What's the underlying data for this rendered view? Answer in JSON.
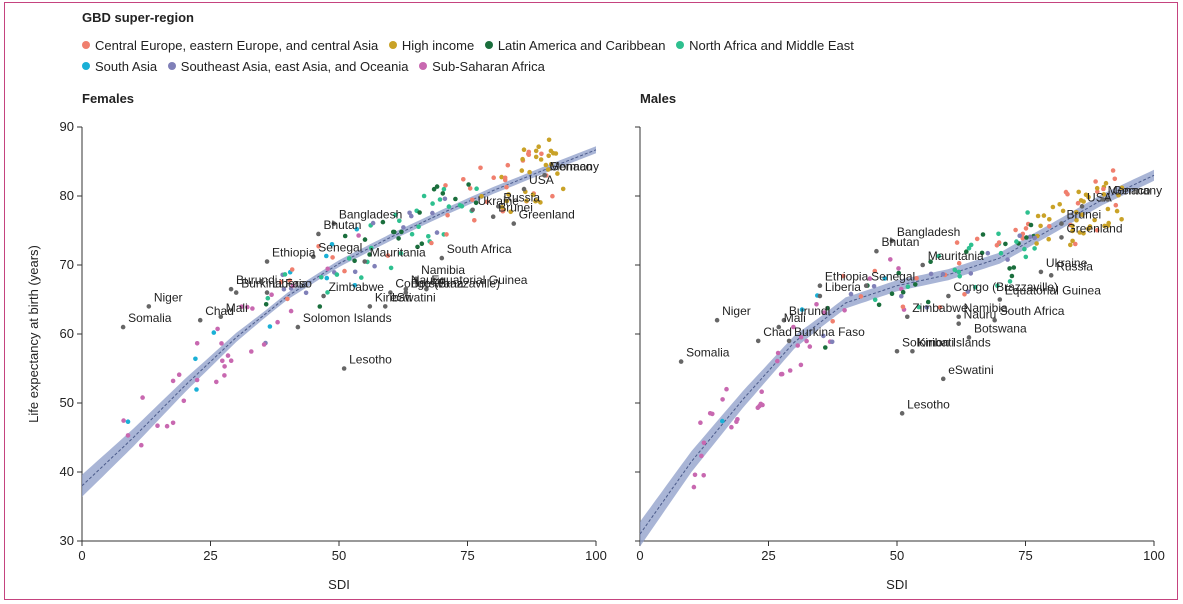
{
  "legend": {
    "title": "GBD super-region",
    "items": [
      {
        "label": "Central Europe, eastern Europe, and central Asia",
        "color": "#f07f6e"
      },
      {
        "label": "High income",
        "color": "#c9a227"
      },
      {
        "label": "Latin America and Caribbean",
        "color": "#1a6e3c"
      },
      {
        "label": "North Africa and Middle East",
        "color": "#2ec08f"
      },
      {
        "label": "South Asia",
        "color": "#1ab0d6"
      },
      {
        "label": "Southeast Asia, east Asia, and Oceania",
        "color": "#8080b8"
      },
      {
        "label": "Sub-Saharan Africa",
        "color": "#c868b0"
      }
    ]
  },
  "chart_data": [
    {
      "type": "scatter",
      "title": "Females",
      "xlabel": "SDI",
      "ylabel": "Life expectancy at birth (years)",
      "xlim": [
        0,
        100
      ],
      "ylim": [
        30,
        90
      ],
      "xticks": [
        "0",
        "25",
        "50",
        "75",
        "100"
      ],
      "yticks": [
        "30",
        "40",
        "50",
        "60",
        "70",
        "80",
        "90"
      ],
      "curve": {
        "x": [
          0,
          10,
          20,
          30,
          40,
          50,
          60,
          70,
          80,
          90,
          100
        ],
        "y": [
          38,
          45,
          52.5,
          59.5,
          65.5,
          70.2,
          74,
          77.5,
          80.8,
          83.8,
          86.7
        ]
      },
      "labels": [
        {
          "text": "Ukraine",
          "x": 76,
          "y": 78
        },
        {
          "text": "Germany",
          "x": 90,
          "y": 83
        },
        {
          "text": "USA",
          "x": 86,
          "y": 81
        },
        {
          "text": "Russia",
          "x": 81,
          "y": 78.5
        },
        {
          "text": "Monaco",
          "x": 90,
          "y": 83
        },
        {
          "text": "Bangladesh",
          "x": 49,
          "y": 76
        },
        {
          "text": "Brunei",
          "x": 80,
          "y": 77
        },
        {
          "text": "Greenland",
          "x": 84,
          "y": 76
        },
        {
          "text": "Bhutan",
          "x": 46,
          "y": 74.5
        },
        {
          "text": "Senegal",
          "x": 45,
          "y": 71.2
        },
        {
          "text": "Ethiopia",
          "x": 36,
          "y": 70.5
        },
        {
          "text": "Mauritania",
          "x": 55,
          "y": 70.5
        },
        {
          "text": "South Africa",
          "x": 70,
          "y": 71
        },
        {
          "text": "Burundi",
          "x": 29,
          "y": 66.5
        },
        {
          "text": "Burkina Faso",
          "x": 30,
          "y": 66
        },
        {
          "text": "Namibia",
          "x": 65,
          "y": 68
        },
        {
          "text": "Equatorial Guinea",
          "x": 67,
          "y": 66.5
        },
        {
          "text": "Niger",
          "x": 13,
          "y": 64
        },
        {
          "text": "Liberia",
          "x": 36,
          "y": 66
        },
        {
          "text": "Congo (Brazzaville)",
          "x": 60,
          "y": 66
        },
        {
          "text": "Nauru",
          "x": 63,
          "y": 66.5
        },
        {
          "text": "Chad",
          "x": 23,
          "y": 62
        },
        {
          "text": "Mali",
          "x": 27,
          "y": 62.5
        },
        {
          "text": "Zimbabwe",
          "x": 47,
          "y": 65.5
        },
        {
          "text": "Kiribati",
          "x": 56,
          "y": 64
        },
        {
          "text": "eSwatini",
          "x": 59,
          "y": 64
        },
        {
          "text": "Botswana",
          "x": 63,
          "y": 66
        },
        {
          "text": "Somalia",
          "x": 8,
          "y": 61
        },
        {
          "text": "Solomon Islands",
          "x": 42,
          "y": 61
        },
        {
          "text": "Lesotho",
          "x": 51,
          "y": 55
        }
      ]
    },
    {
      "type": "scatter",
      "title": "Males",
      "xlabel": "SDI",
      "ylabel": "",
      "xlim": [
        0,
        100
      ],
      "ylim": [
        30,
        90
      ],
      "xticks": [
        "0",
        "25",
        "50",
        "75",
        "100"
      ],
      "yticks": [],
      "curve": {
        "x": [
          0,
          10,
          20,
          30,
          40,
          50,
          60,
          70,
          80,
          90,
          100
        ],
        "y": [
          31,
          41.5,
          50.5,
          58.8,
          64.5,
          67,
          68.6,
          71,
          75.2,
          79.5,
          83
        ]
      },
      "labels": [
        {
          "text": "Bangladesh",
          "x": 49,
          "y": 73.5
        },
        {
          "text": "Germany",
          "x": 91,
          "y": 79.5
        },
        {
          "text": "USA",
          "x": 86,
          "y": 78.5
        },
        {
          "text": "Monaco",
          "x": 90,
          "y": 79.5
        },
        {
          "text": "Bhutan",
          "x": 46,
          "y": 72
        },
        {
          "text": "Brunei",
          "x": 82,
          "y": 76
        },
        {
          "text": "Mauritania",
          "x": 55,
          "y": 70
        },
        {
          "text": "Greenland",
          "x": 82,
          "y": 74
        },
        {
          "text": "Ethiopia",
          "x": 35,
          "y": 67
        },
        {
          "text": "Senegal",
          "x": 44,
          "y": 67
        },
        {
          "text": "Ukraine",
          "x": 78,
          "y": 69
        },
        {
          "text": "Russia",
          "x": 80,
          "y": 68.5
        },
        {
          "text": "Liberia",
          "x": 35,
          "y": 65.5
        },
        {
          "text": "Congo (Brazzaville)",
          "x": 60,
          "y": 65.5
        },
        {
          "text": "Equatorial Guinea",
          "x": 70,
          "y": 65
        },
        {
          "text": "Niger",
          "x": 15,
          "y": 62
        },
        {
          "text": "Burundi",
          "x": 28,
          "y": 62
        },
        {
          "text": "Namibia",
          "x": 62,
          "y": 62.5
        },
        {
          "text": "Nauru",
          "x": 62,
          "y": 61.5
        },
        {
          "text": "South Africa",
          "x": 69,
          "y": 62
        },
        {
          "text": "Mali",
          "x": 27,
          "y": 61
        },
        {
          "text": "Zimbabwe",
          "x": 52,
          "y": 62.5
        },
        {
          "text": "Chad",
          "x": 23,
          "y": 59
        },
        {
          "text": "Botswana",
          "x": 64,
          "y": 59.5
        },
        {
          "text": "Burkina Faso",
          "x": 29,
          "y": 59
        },
        {
          "text": "Kiribati",
          "x": 53,
          "y": 57.5
        },
        {
          "text": "Solomon Islands",
          "x": 50,
          "y": 57.5
        },
        {
          "text": "Somalia",
          "x": 8,
          "y": 56
        },
        {
          "text": "eSwatini",
          "x": 59,
          "y": 53.5
        },
        {
          "text": "Lesotho",
          "x": 51,
          "y": 48.5
        }
      ]
    }
  ]
}
